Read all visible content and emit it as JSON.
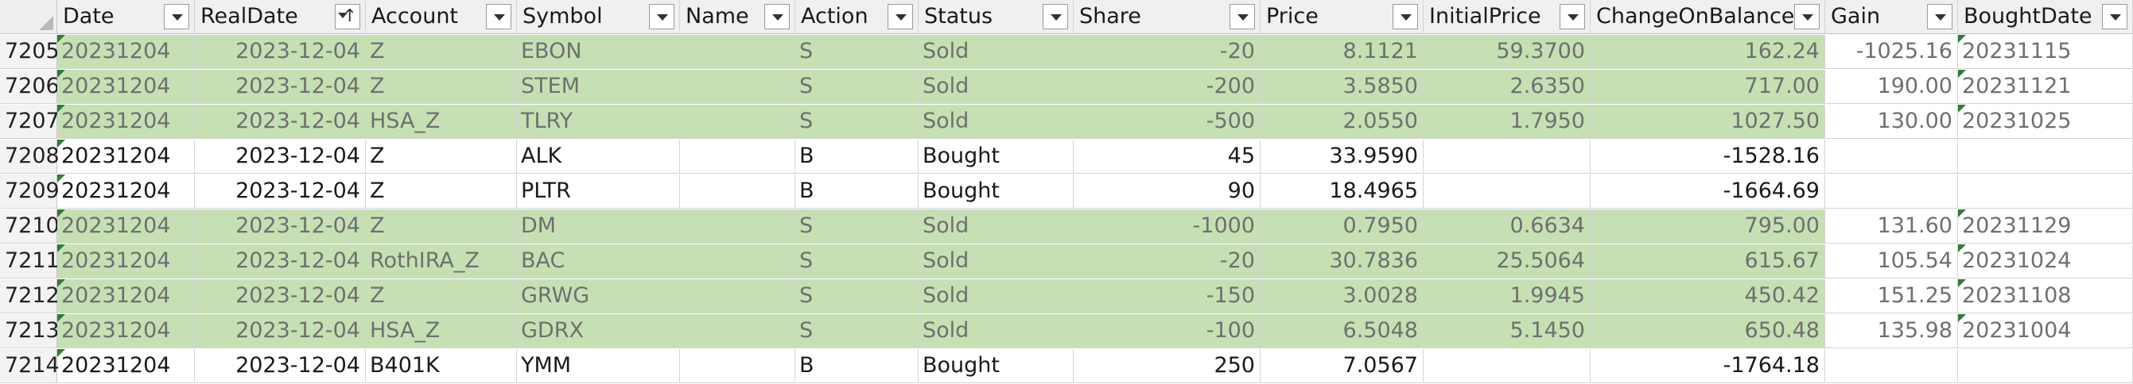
{
  "headers": [
    "Date",
    "RealDate",
    "Account",
    "Symbol",
    "Name",
    "Action",
    "Status",
    "Share",
    "Price",
    "InitialPrice",
    "ChangeOnBalance",
    "Gain",
    "BoughtDate"
  ],
  "sorted_column": "RealDate",
  "colors": {
    "sold_fill": "#c6e0b4",
    "header_fill": "#f0f0f0",
    "error_tick": "#2e7d32"
  },
  "rows": [
    {
      "rownum": "7205",
      "date": "20231204",
      "realdate": "2023-12-04",
      "account": "Z",
      "symbol": "EBON",
      "name": "",
      "action": "S",
      "status": "Sold",
      "share": "-20",
      "price": "8.1121",
      "initialprice": "59.3700",
      "change": "162.24",
      "gain": "-1025.16",
      "boughtdate": "20231115",
      "sold": true
    },
    {
      "rownum": "7206",
      "date": "20231204",
      "realdate": "2023-12-04",
      "account": "Z",
      "symbol": "STEM",
      "name": "",
      "action": "S",
      "status": "Sold",
      "share": "-200",
      "price": "3.5850",
      "initialprice": "2.6350",
      "change": "717.00",
      "gain": "190.00",
      "boughtdate": "20231121",
      "sold": true
    },
    {
      "rownum": "7207",
      "date": "20231204",
      "realdate": "2023-12-04",
      "account": "HSA_Z",
      "symbol": "TLRY",
      "name": "",
      "action": "S",
      "status": "Sold",
      "share": "-500",
      "price": "2.0550",
      "initialprice": "1.7950",
      "change": "1027.50",
      "gain": "130.00",
      "boughtdate": "20231025",
      "sold": true
    },
    {
      "rownum": "7208",
      "date": "20231204",
      "realdate": "2023-12-04",
      "account": "Z",
      "symbol": "ALK",
      "name": "",
      "action": "B",
      "status": "Bought",
      "share": "45",
      "price": "33.9590",
      "initialprice": "",
      "change": "-1528.16",
      "gain": "",
      "boughtdate": "",
      "sold": false
    },
    {
      "rownum": "7209",
      "date": "20231204",
      "realdate": "2023-12-04",
      "account": "Z",
      "symbol": "PLTR",
      "name": "",
      "action": "B",
      "status": "Bought",
      "share": "90",
      "price": "18.4965",
      "initialprice": "",
      "change": "-1664.69",
      "gain": "",
      "boughtdate": "",
      "sold": false
    },
    {
      "rownum": "7210",
      "date": "20231204",
      "realdate": "2023-12-04",
      "account": "Z",
      "symbol": "DM",
      "name": "",
      "action": "S",
      "status": "Sold",
      "share": "-1000",
      "price": "0.7950",
      "initialprice": "0.6634",
      "change": "795.00",
      "gain": "131.60",
      "boughtdate": "20231129",
      "sold": true
    },
    {
      "rownum": "7211",
      "date": "20231204",
      "realdate": "2023-12-04",
      "account": "RothIRA_Z",
      "symbol": "BAC",
      "name": "",
      "action": "S",
      "status": "Sold",
      "share": "-20",
      "price": "30.7836",
      "initialprice": "25.5064",
      "change": "615.67",
      "gain": "105.54",
      "boughtdate": "20231024",
      "sold": true
    },
    {
      "rownum": "7212",
      "date": "20231204",
      "realdate": "2023-12-04",
      "account": "Z",
      "symbol": "GRWG",
      "name": "",
      "action": "S",
      "status": "Sold",
      "share": "-150",
      "price": "3.0028",
      "initialprice": "1.9945",
      "change": "450.42",
      "gain": "151.25",
      "boughtdate": "20231108",
      "sold": true
    },
    {
      "rownum": "7213",
      "date": "20231204",
      "realdate": "2023-12-04",
      "account": "HSA_Z",
      "symbol": "GDRX",
      "name": "",
      "action": "S",
      "status": "Sold",
      "share": "-100",
      "price": "6.5048",
      "initialprice": "5.1450",
      "change": "650.48",
      "gain": "135.98",
      "boughtdate": "20231004",
      "sold": true
    },
    {
      "rownum": "7214",
      "date": "20231204",
      "realdate": "2023-12-04",
      "account": "B401K",
      "symbol": "YMM",
      "name": "",
      "action": "B",
      "status": "Bought",
      "share": "250",
      "price": "7.0567",
      "initialprice": "",
      "change": "-1764.18",
      "gain": "",
      "boughtdate": "",
      "sold": false
    }
  ]
}
